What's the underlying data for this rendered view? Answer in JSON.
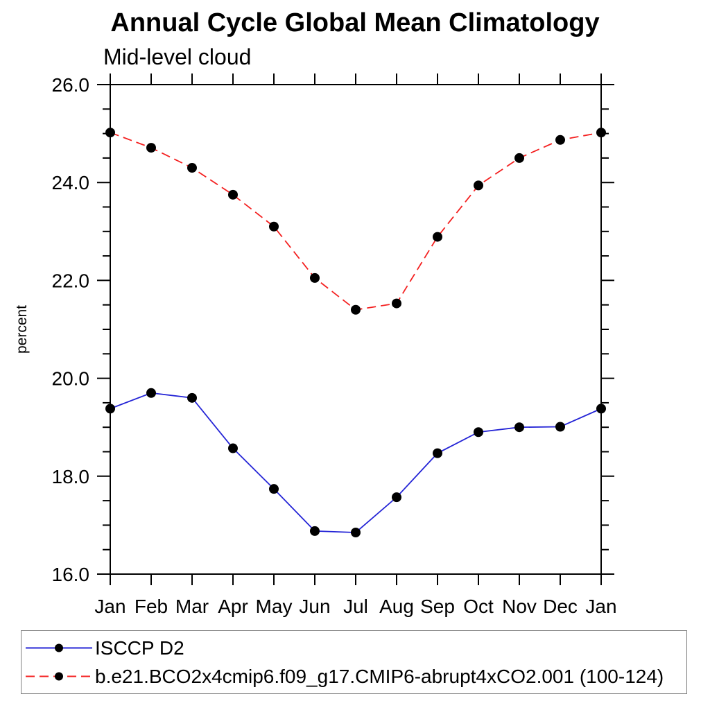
{
  "header": {
    "title": "Annual Cycle Global Mean Climatology",
    "subtitle": "Mid-level cloud"
  },
  "axes": {
    "y_axis_title": "percent",
    "y_tick_labels": [
      "16.0",
      "18.0",
      "20.0",
      "22.0",
      "24.0",
      "26.0"
    ],
    "x_tick_labels": [
      "Jan",
      "Feb",
      "Mar",
      "Apr",
      "May",
      "Jun",
      "Jul",
      "Aug",
      "Sep",
      "Oct",
      "Nov",
      "Dec",
      "Jan"
    ]
  },
  "colors": {
    "frame": "#000000",
    "marker": "#000000",
    "series_blue": "#2424d6",
    "series_red": "#f42020",
    "legend_border": "#7f7f7f"
  },
  "chart_data": {
    "type": "line",
    "title": "Annual Cycle Global Mean Climatology",
    "subtitle": "Mid-level cloud",
    "xlabel": "",
    "ylabel": "percent",
    "ylim": [
      16.0,
      26.0
    ],
    "y_major_tick_step": 2.0,
    "y_minor_tick_step": 0.5,
    "y_ticks": [
      {
        "v": 16.0,
        "label": "16.0"
      },
      {
        "v": 18.0,
        "label": "18.0"
      },
      {
        "v": 20.0,
        "label": "20.0"
      },
      {
        "v": 22.0,
        "label": "22.0"
      },
      {
        "v": 24.0,
        "label": "24.0"
      },
      {
        "v": 26.0,
        "label": "26.0"
      }
    ],
    "grid": false,
    "legend_position": "bottom",
    "categories": [
      "Jan",
      "Feb",
      "Mar",
      "Apr",
      "May",
      "Jun",
      "Jul",
      "Aug",
      "Sep",
      "Oct",
      "Nov",
      "Dec",
      "Jan"
    ],
    "series": [
      {
        "name": "ISCCP D2",
        "color": "#2424d6",
        "line_style": "solid",
        "dasharray": "",
        "marker": "filled-circle-black",
        "values": [
          19.38,
          19.7,
          19.6,
          18.57,
          17.74,
          16.88,
          16.85,
          17.57,
          18.47,
          18.9,
          19.0,
          19.01,
          19.38
        ]
      },
      {
        "name": "b.e21.BCO2x4cmip6.f09_g17.CMIP6-abrupt4xCO2.001 (100-124)",
        "color": "#f42020",
        "line_style": "dashed",
        "dasharray": "13,7",
        "marker": "filled-circle-black",
        "values": [
          25.02,
          24.71,
          24.3,
          23.75,
          23.1,
          22.05,
          21.4,
          21.53,
          22.89,
          23.94,
          24.5,
          24.87,
          25.02
        ]
      }
    ]
  }
}
